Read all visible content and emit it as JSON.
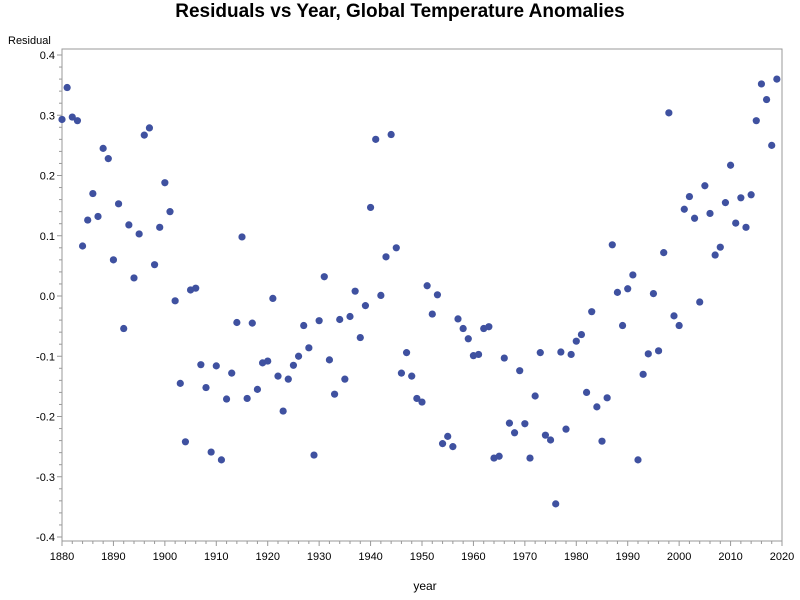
{
  "colors": {
    "point": "#3F51A0",
    "axis": "#999999",
    "text": "#000000"
  },
  "chart_data": {
    "type": "scatter",
    "title": "Residuals vs Year, Global Temperature Anomalies",
    "xlabel": "year",
    "ylabel": "Residual",
    "xlim": [
      1880,
      2020
    ],
    "ylim": [
      -0.4,
      0.4
    ],
    "grid": false,
    "x_ticks": [
      1880,
      1890,
      1900,
      1910,
      1920,
      1930,
      1940,
      1950,
      1960,
      1970,
      1980,
      1990,
      2000,
      2010,
      2020
    ],
    "y_ticks": [
      0.4,
      0.3,
      0.2,
      0.1,
      0.0,
      -0.1,
      -0.2,
      -0.3,
      -0.4
    ],
    "y_tick_labels": [
      "0.4",
      "0.3",
      "0.2",
      "0.1",
      "0.0",
      "-0.1",
      "-0.2",
      "-0.3",
      "-0.4"
    ],
    "x_tick_labels": [
      "1880",
      "1890",
      "1900",
      "1910",
      "1920",
      "1930",
      "1940",
      "1950",
      "1960",
      "1970",
      "1980",
      "1990",
      "2000",
      "2010",
      "2020"
    ],
    "x": [
      1880,
      1881,
      1882,
      1883,
      1884,
      1885,
      1886,
      1887,
      1888,
      1889,
      1890,
      1891,
      1892,
      1893,
      1894,
      1895,
      1896,
      1897,
      1898,
      1899,
      1900,
      1901,
      1902,
      1903,
      1904,
      1905,
      1906,
      1907,
      1908,
      1909,
      1910,
      1911,
      1912,
      1913,
      1914,
      1915,
      1916,
      1917,
      1918,
      1919,
      1920,
      1921,
      1922,
      1923,
      1924,
      1925,
      1926,
      1927,
      1928,
      1929,
      1930,
      1931,
      1932,
      1933,
      1934,
      1935,
      1936,
      1937,
      1938,
      1939,
      1940,
      1941,
      1942,
      1943,
      1944,
      1945,
      1946,
      1947,
      1948,
      1949,
      1950,
      1951,
      1952,
      1953,
      1954,
      1955,
      1956,
      1957,
      1958,
      1959,
      1960,
      1961,
      1962,
      1963,
      1964,
      1965,
      1966,
      1967,
      1968,
      1969,
      1970,
      1971,
      1972,
      1973,
      1974,
      1975,
      1976,
      1977,
      1978,
      1979,
      1980,
      1981,
      1982,
      1983,
      1984,
      1985,
      1986,
      1987,
      1988,
      1989,
      1990,
      1991,
      1992,
      1993,
      1994,
      1995,
      1996,
      1997,
      1998,
      1999,
      2000,
      2001,
      2002,
      2003,
      2004,
      2005,
      2006,
      2007,
      2008,
      2009,
      2010,
      2011,
      2012,
      2013,
      2014,
      2015,
      2016,
      2017,
      2018,
      2019
    ],
    "y": [
      0.293,
      0.346,
      0.297,
      0.291,
      0.083,
      0.126,
      0.17,
      0.132,
      0.245,
      0.228,
      0.06,
      0.153,
      -0.054,
      0.118,
      0.03,
      0.103,
      0.267,
      0.279,
      0.052,
      0.114,
      0.188,
      0.14,
      -0.008,
      -0.145,
      -0.242,
      0.01,
      0.013,
      -0.114,
      -0.152,
      -0.259,
      -0.116,
      -0.272,
      -0.171,
      -0.128,
      -0.044,
      0.098,
      -0.17,
      -0.045,
      -0.155,
      -0.111,
      -0.108,
      -0.004,
      -0.133,
      -0.191,
      -0.138,
      -0.115,
      -0.1,
      -0.049,
      -0.086,
      -0.264,
      -0.041,
      0.032,
      -0.106,
      -0.163,
      -0.039,
      -0.138,
      -0.034,
      0.008,
      -0.069,
      -0.016,
      0.147,
      0.26,
      0.001,
      0.065,
      0.268,
      0.08,
      -0.128,
      -0.094,
      -0.133,
      -0.17,
      -0.176,
      0.017,
      -0.03,
      0.002,
      -0.245,
      -0.233,
      -0.25,
      -0.038,
      -0.054,
      -0.071,
      -0.099,
      -0.097,
      -0.054,
      -0.051,
      -0.269,
      -0.266,
      -0.103,
      -0.211,
      -0.227,
      -0.124,
      -0.212,
      -0.269,
      -0.166,
      -0.094,
      -0.231,
      -0.239,
      -0.345,
      -0.093,
      -0.221,
      -0.097,
      -0.075,
      -0.064,
      -0.16,
      -0.026,
      -0.184,
      -0.241,
      -0.169,
      0.085,
      0.006,
      -0.049,
      0.012,
      0.035,
      -0.272,
      -0.13,
      -0.096,
      0.004,
      -0.091,
      0.072,
      0.304,
      -0.033,
      -0.049,
      0.144,
      0.165,
      0.129,
      -0.01,
      0.183,
      0.137,
      0.068,
      0.081,
      0.155,
      0.217,
      0.121,
      0.163,
      0.114,
      0.168,
      0.291,
      0.352,
      0.326,
      0.25,
      0.36
    ]
  }
}
